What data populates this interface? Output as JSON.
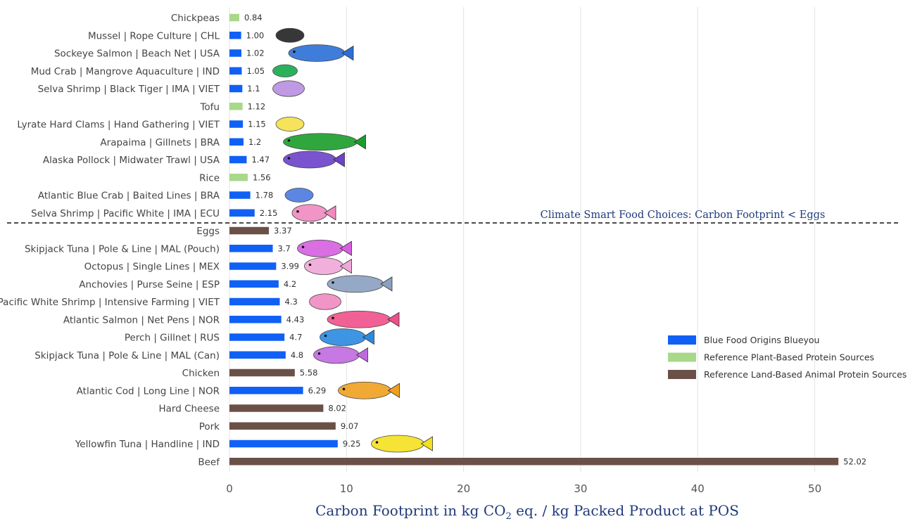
{
  "chart_data": {
    "type": "bar",
    "orientation": "horizontal",
    "categories": [
      "Chickpeas",
      "Mussel | Rope Culture | CHL",
      "Sockeye Salmon | Beach Net | USA",
      "Mud Crab | Mangrove Aquaculture | IND",
      "Selva Shrimp | Black Tiger | IMA | VIET",
      "Tofu",
      "Lyrate Hard Clams | Hand Gathering | VIET",
      "Arapaima | Gillnets | BRA",
      "Alaska Pollock | Midwater Trawl | USA",
      "Rice",
      "Atlantic Blue Crab | Baited Lines | BRA",
      "Selva Shrimp | Pacific White | IMA | ECU",
      "Eggs",
      "Skipjack Tuna | Pole & Line | MAL (Pouch)",
      "Octopus | Single Lines | MEX",
      "Anchovies | Purse Seine | ESP",
      "Pacific White Shrimp | Intensive Farming | VIET",
      "Atlantic Salmon | Net Pens | NOR",
      "Perch | Gillnet | RUS",
      "Skipjack Tuna | Pole & Line | MAL (Can)",
      "Chicken",
      "Atlantic Cod | Long Line | NOR",
      "Hard Cheese",
      "Pork",
      "Yellowfin Tuna | Handline | IND",
      "Beef"
    ],
    "values": [
      0.84,
      1.0,
      1.02,
      1.05,
      1.1,
      1.12,
      1.15,
      1.2,
      1.47,
      1.56,
      1.78,
      2.15,
      3.37,
      3.7,
      3.99,
      4.2,
      4.3,
      4.43,
      4.7,
      4.8,
      5.58,
      6.29,
      8.02,
      9.07,
      9.25,
      52.02
    ],
    "value_labels": [
      "0.84",
      "1.00",
      "1.02",
      "1.05",
      "1.1",
      "1.12",
      "1.15",
      "1.2",
      "1.47",
      "1.56",
      "1.78",
      "2.15",
      "3.37",
      "3.7",
      "3.99",
      "4.2",
      "4.3",
      "4.43",
      "4.7",
      "4.8",
      "5.58",
      "6.29",
      "8.02",
      "9.07",
      "9.25",
      "52.02"
    ],
    "groups": [
      "plant",
      "blue",
      "blue",
      "blue",
      "blue",
      "plant",
      "blue",
      "blue",
      "blue",
      "plant",
      "blue",
      "blue",
      "land",
      "blue",
      "blue",
      "blue",
      "blue",
      "blue",
      "blue",
      "blue",
      "land",
      "blue",
      "land",
      "land",
      "blue",
      "land"
    ],
    "series": [
      {
        "key": "blue",
        "name": "Blue Food Origins Blueyou",
        "color": "#1060f5"
      },
      {
        "key": "plant",
        "name": "Reference Plant-Based Protein Sources",
        "color": "#a8d88a"
      },
      {
        "key": "land",
        "name": "Reference Land-Based Animal Protein Sources",
        "color": "#6b5048"
      }
    ],
    "icons": [
      null,
      "mussel-icon",
      "sockeye-salmon-icon",
      "mud-crab-icon",
      "black-tiger-shrimp-icon",
      null,
      "clam-icon",
      "arapaima-icon",
      "pollock-icon",
      null,
      "blue-crab-icon",
      "pacific-white-shrimp-icon",
      "skipjack-tuna-icon",
      "octopus-icon",
      "anchovy-icon",
      "pacific-white-shrimp-icon",
      "atlantic-salmon-icon",
      "perch-icon",
      "skipjack-tuna-icon",
      "atlantic-cod-icon",
      "yellowfin-tuna-icon"
    ],
    "xlabel_parts": [
      "Carbon Footprint in kg CO",
      "2",
      " eq. / kg Packed Product at POS"
    ],
    "xlim": [
      0,
      57
    ],
    "xticks": [
      0,
      10,
      20,
      30,
      40,
      50
    ],
    "grid": "vertical",
    "legend_position": "right",
    "threshold": {
      "label": "Climate Smart Food Choices: Carbon Footprint < Eggs",
      "between_categories": [
        "Selva Shrimp | Pacific White | IMA | ECU",
        "Eggs"
      ]
    }
  }
}
